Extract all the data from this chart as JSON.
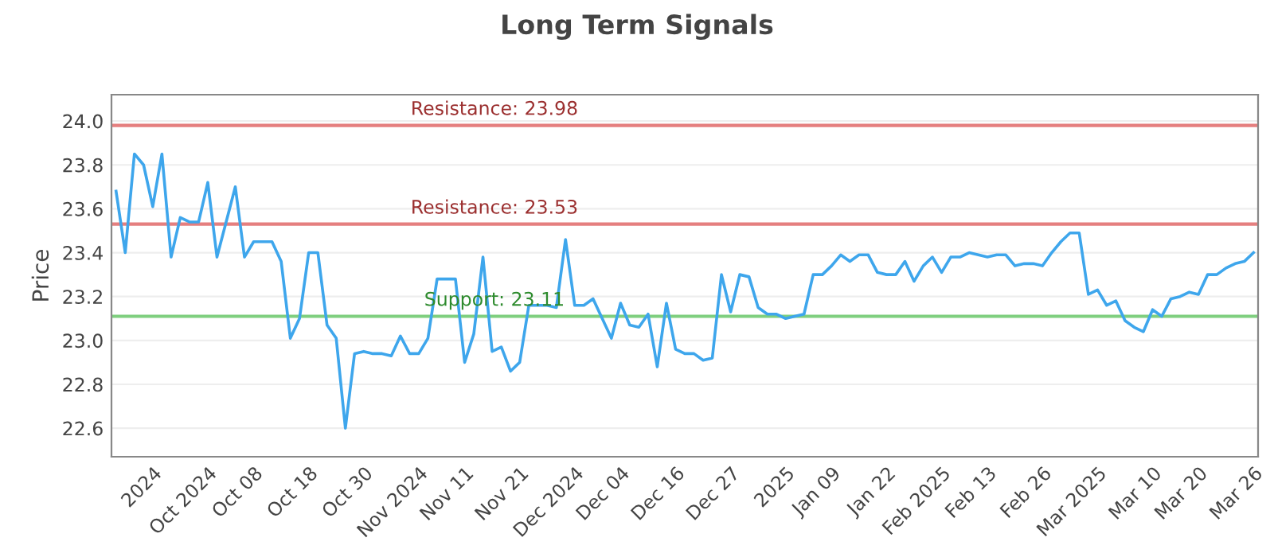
{
  "chart_data": {
    "type": "line",
    "title": "Long Term Signals",
    "ylabel": "Price",
    "categories": [
      null,
      null,
      null,
      null,
      "2024",
      null,
      null,
      null,
      null,
      null,
      "Oct 2024",
      null,
      null,
      null,
      null,
      "Oct 08",
      null,
      null,
      null,
      null,
      null,
      "Oct 18",
      null,
      null,
      null,
      null,
      null,
      "Oct 30",
      null,
      null,
      null,
      null,
      null,
      "Nov 2024",
      null,
      null,
      null,
      null,
      "Nov 11",
      null,
      null,
      null,
      null,
      null,
      "Nov 21",
      null,
      null,
      null,
      null,
      null,
      "Dec 2024",
      null,
      null,
      null,
      null,
      "Dec 04",
      null,
      null,
      null,
      null,
      null,
      "Dec 16",
      null,
      null,
      null,
      null,
      null,
      "Dec 27",
      null,
      null,
      null,
      null,
      null,
      "2025",
      null,
      null,
      null,
      null,
      "Jan 09",
      null,
      null,
      null,
      null,
      null,
      "Jan 22",
      null,
      null,
      null,
      null,
      null,
      "Feb 2025",
      null,
      null,
      null,
      null,
      "Feb 13",
      null,
      null,
      null,
      null,
      null,
      "Feb 26",
      null,
      null,
      null,
      null,
      null,
      "Mar 2025",
      null,
      null,
      null,
      null,
      null,
      "Mar 10",
      null,
      null,
      null,
      null,
      "Mar 20",
      null,
      null,
      null,
      null,
      null,
      "Mar 26"
    ],
    "series": [
      {
        "color": "#3ea6ec",
        "values": [
          23.68,
          23.4,
          23.85,
          23.8,
          23.61,
          23.85,
          23.38,
          23.56,
          23.54,
          23.54,
          23.72,
          23.38,
          23.54,
          23.7,
          23.38,
          23.45,
          23.45,
          23.45,
          23.36,
          23.01,
          23.1,
          23.4,
          23.4,
          23.07,
          23.01,
          22.6,
          22.94,
          22.95,
          22.94,
          22.94,
          22.93,
          23.02,
          22.94,
          22.94,
          23.01,
          23.28,
          23.28,
          23.28,
          22.9,
          23.03,
          23.38,
          22.95,
          22.97,
          22.86,
          22.9,
          23.16,
          23.16,
          23.16,
          23.15,
          23.46,
          23.16,
          23.16,
          23.19,
          23.1,
          23.01,
          23.17,
          23.07,
          23.06,
          23.12,
          22.88,
          23.17,
          22.96,
          22.94,
          22.94,
          22.91,
          22.92,
          23.3,
          23.13,
          23.3,
          23.29,
          23.15,
          23.12,
          23.12,
          23.1,
          23.11,
          23.12,
          23.3,
          23.3,
          23.34,
          23.39,
          23.36,
          23.39,
          23.39,
          23.31,
          23.3,
          23.3,
          23.36,
          23.27,
          23.34,
          23.38,
          23.31,
          23.38,
          23.38,
          23.4,
          23.39,
          23.38,
          23.39,
          23.39,
          23.34,
          23.35,
          23.35,
          23.34,
          23.4,
          23.45,
          23.49,
          23.49,
          23.21,
          23.23,
          23.16,
          23.18,
          23.09,
          23.06,
          23.04,
          23.14,
          23.11,
          23.19,
          23.2,
          23.22,
          23.21,
          23.3,
          23.3,
          23.33,
          23.35,
          23.36,
          23.4
        ]
      }
    ],
    "ylim": [
      22.47,
      24.12
    ],
    "yticks": [
      22.6,
      22.8,
      {
        "value": 23,
        "label": "23.0"
      },
      23.2,
      23.4,
      23.6,
      23.8,
      {
        "value": 24,
        "label": "24.0"
      }
    ],
    "grid": "y",
    "legend": false,
    "marker": "none",
    "line_style": "solid",
    "ref_lines": [
      {
        "axis": "y",
        "value": 23.98,
        "label": "Resistance: 23.98",
        "color": "#e57f7f"
      },
      {
        "axis": "y",
        "value": 23.53,
        "label": "Resistance: 23.53",
        "color": "#e57f7f"
      },
      {
        "axis": "y",
        "value": 23.11,
        "label": "Support: 23.11",
        "color": "#7fcf7f"
      }
    ]
  }
}
